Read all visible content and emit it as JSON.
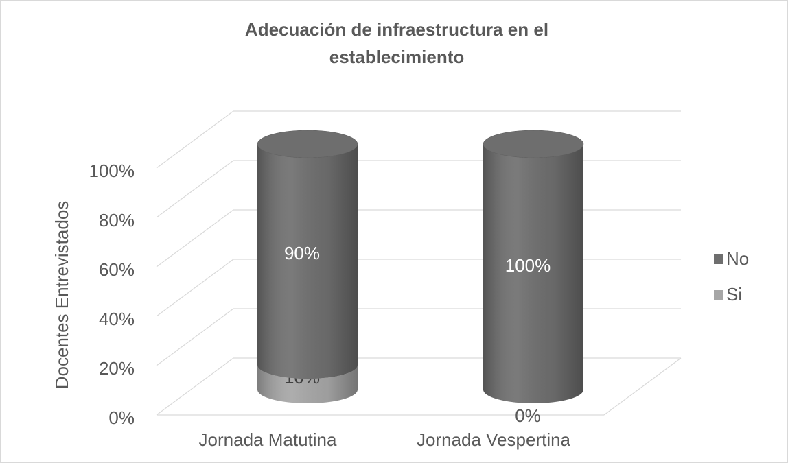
{
  "chart_data": {
    "type": "bar3d_cylinder_stacked",
    "title": "Adecuación de infraestructura en el establecimiento",
    "ylabel": "Docentes Entrevistados",
    "categories": [
      "Jornada Matutina",
      "Jornada Vespertina"
    ],
    "series": [
      {
        "name": "Si",
        "color": "#a6a6a6",
        "values": [
          10,
          0
        ],
        "value_labels": [
          "10%",
          "0%"
        ]
      },
      {
        "name": "No",
        "color": "#6e6e6e",
        "values": [
          90,
          100
        ],
        "value_labels": [
          "90%",
          "100%"
        ]
      }
    ],
    "ylim": [
      0,
      100
    ],
    "yticks": [
      {
        "value": 0,
        "label": "0%"
      },
      {
        "value": 20,
        "label": "20%"
      },
      {
        "value": 40,
        "label": "40%"
      },
      {
        "value": 60,
        "label": "60%"
      },
      {
        "value": 80,
        "label": "80%"
      },
      {
        "value": 100,
        "label": "100%"
      }
    ],
    "grid": true,
    "legend": "right"
  }
}
